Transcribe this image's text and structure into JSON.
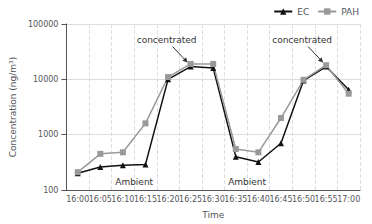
{
  "chart_data": {
    "type": "line",
    "xlabel": "Time",
    "ylabel": "Concentration (ng/m³)",
    "categories": [
      "16:00",
      "16:05",
      "16:10",
      "16:15",
      "16:20",
      "16:25",
      "16:30",
      "16:35",
      "16:40",
      "16:45",
      "16:50",
      "16:55",
      "17:00"
    ],
    "series": [
      {
        "name": "EC",
        "color": "#111111",
        "marker": "triangle",
        "values": [
          200,
          260,
          280,
          290,
          10000,
          17000,
          16000,
          400,
          320,
          700,
          9500,
          17000,
          6500
        ]
      },
      {
        "name": "PAH",
        "color": "#999999",
        "marker": "square",
        "values": [
          210,
          450,
          480,
          1600,
          11000,
          19000,
          19000,
          550,
          480,
          2000,
          9800,
          18000,
          5500
        ]
      }
    ],
    "log": "y",
    "ylim": [
      100,
      100000
    ],
    "yticks": [
      100,
      1000,
      10000,
      100000
    ],
    "grid": true,
    "legend": "upper right",
    "annotations": [
      {
        "text": "concentrated",
        "x": "16:25",
        "y": 17000,
        "arrow": true
      },
      {
        "text": "concentrated",
        "x": "16:55",
        "y": 17000,
        "arrow": true
      },
      {
        "text": "Ambient",
        "x": [
          "16:10",
          "16:15"
        ]
      },
      {
        "text": "Ambient",
        "x": [
          "16:35",
          "16:40"
        ]
      }
    ]
  }
}
